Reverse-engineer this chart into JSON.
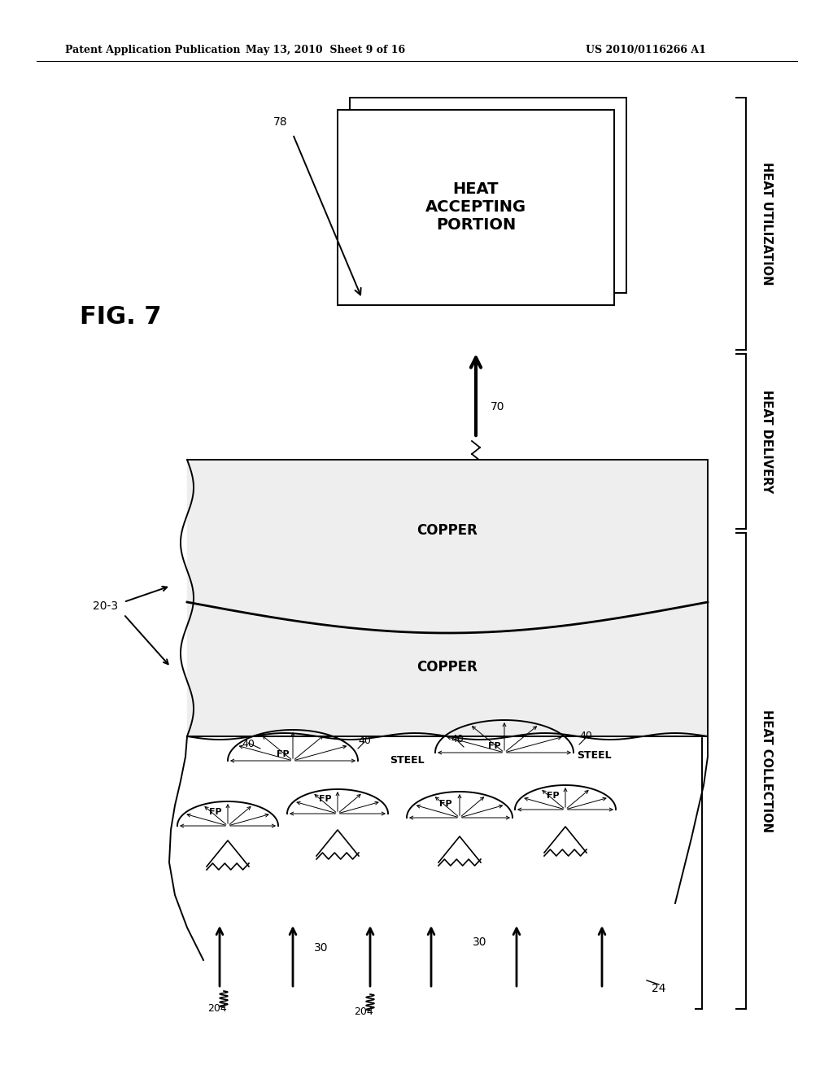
{
  "bg_color": "#ffffff",
  "text_color": "#000000",
  "header_left": "Patent Application Publication",
  "header_mid": "May 13, 2010  Sheet 9 of 16",
  "header_right": "US 2010/0116266 A1",
  "fig_label": "FIG. 7",
  "heat_utilization": "HEAT UTILIZATION",
  "heat_delivery": "HEAT DELIVERY",
  "heat_collection": "HEAT COLLECTION"
}
